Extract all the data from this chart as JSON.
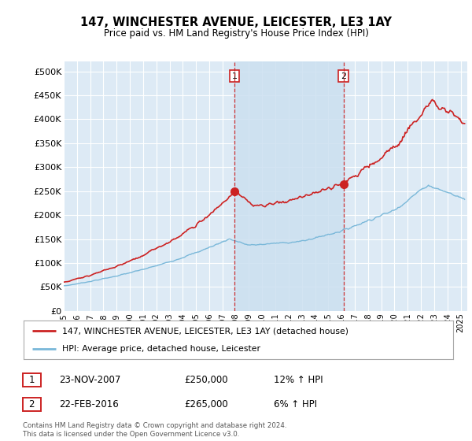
{
  "title": "147, WINCHESTER AVENUE, LEICESTER, LE3 1AY",
  "subtitle": "Price paid vs. HM Land Registry's House Price Index (HPI)",
  "ylabel_ticks": [
    "£0",
    "£50K",
    "£100K",
    "£150K",
    "£200K",
    "£250K",
    "£300K",
    "£350K",
    "£400K",
    "£450K",
    "£500K"
  ],
  "ytick_values": [
    0,
    50000,
    100000,
    150000,
    200000,
    250000,
    300000,
    350000,
    400000,
    450000,
    500000
  ],
  "ylim": [
    0,
    520000
  ],
  "xlim_start": 1995.0,
  "xlim_end": 2025.5,
  "hpi_color": "#7ab8d9",
  "price_color": "#cc2222",
  "vline_color": "#cc2222",
  "shade_color": "#cce0f0",
  "sale1_year": 2007.9,
  "sale1_price": 250000,
  "sale1_label": "1",
  "sale2_year": 2016.15,
  "sale2_price": 265000,
  "sale2_label": "2",
  "legend_line1": "147, WINCHESTER AVENUE, LEICESTER, LE3 1AY (detached house)",
  "legend_line2": "HPI: Average price, detached house, Leicester",
  "table_row1": [
    "1",
    "23-NOV-2007",
    "£250,000",
    "12% ↑ HPI"
  ],
  "table_row2": [
    "2",
    "22-FEB-2016",
    "£265,000",
    "6% ↑ HPI"
  ],
  "footnote": "Contains HM Land Registry data © Crown copyright and database right 2024.\nThis data is licensed under the Open Government Licence v3.0.",
  "background_color": "#ffffff",
  "plot_bg_color": "#ddeaf5",
  "grid_color": "#ffffff"
}
